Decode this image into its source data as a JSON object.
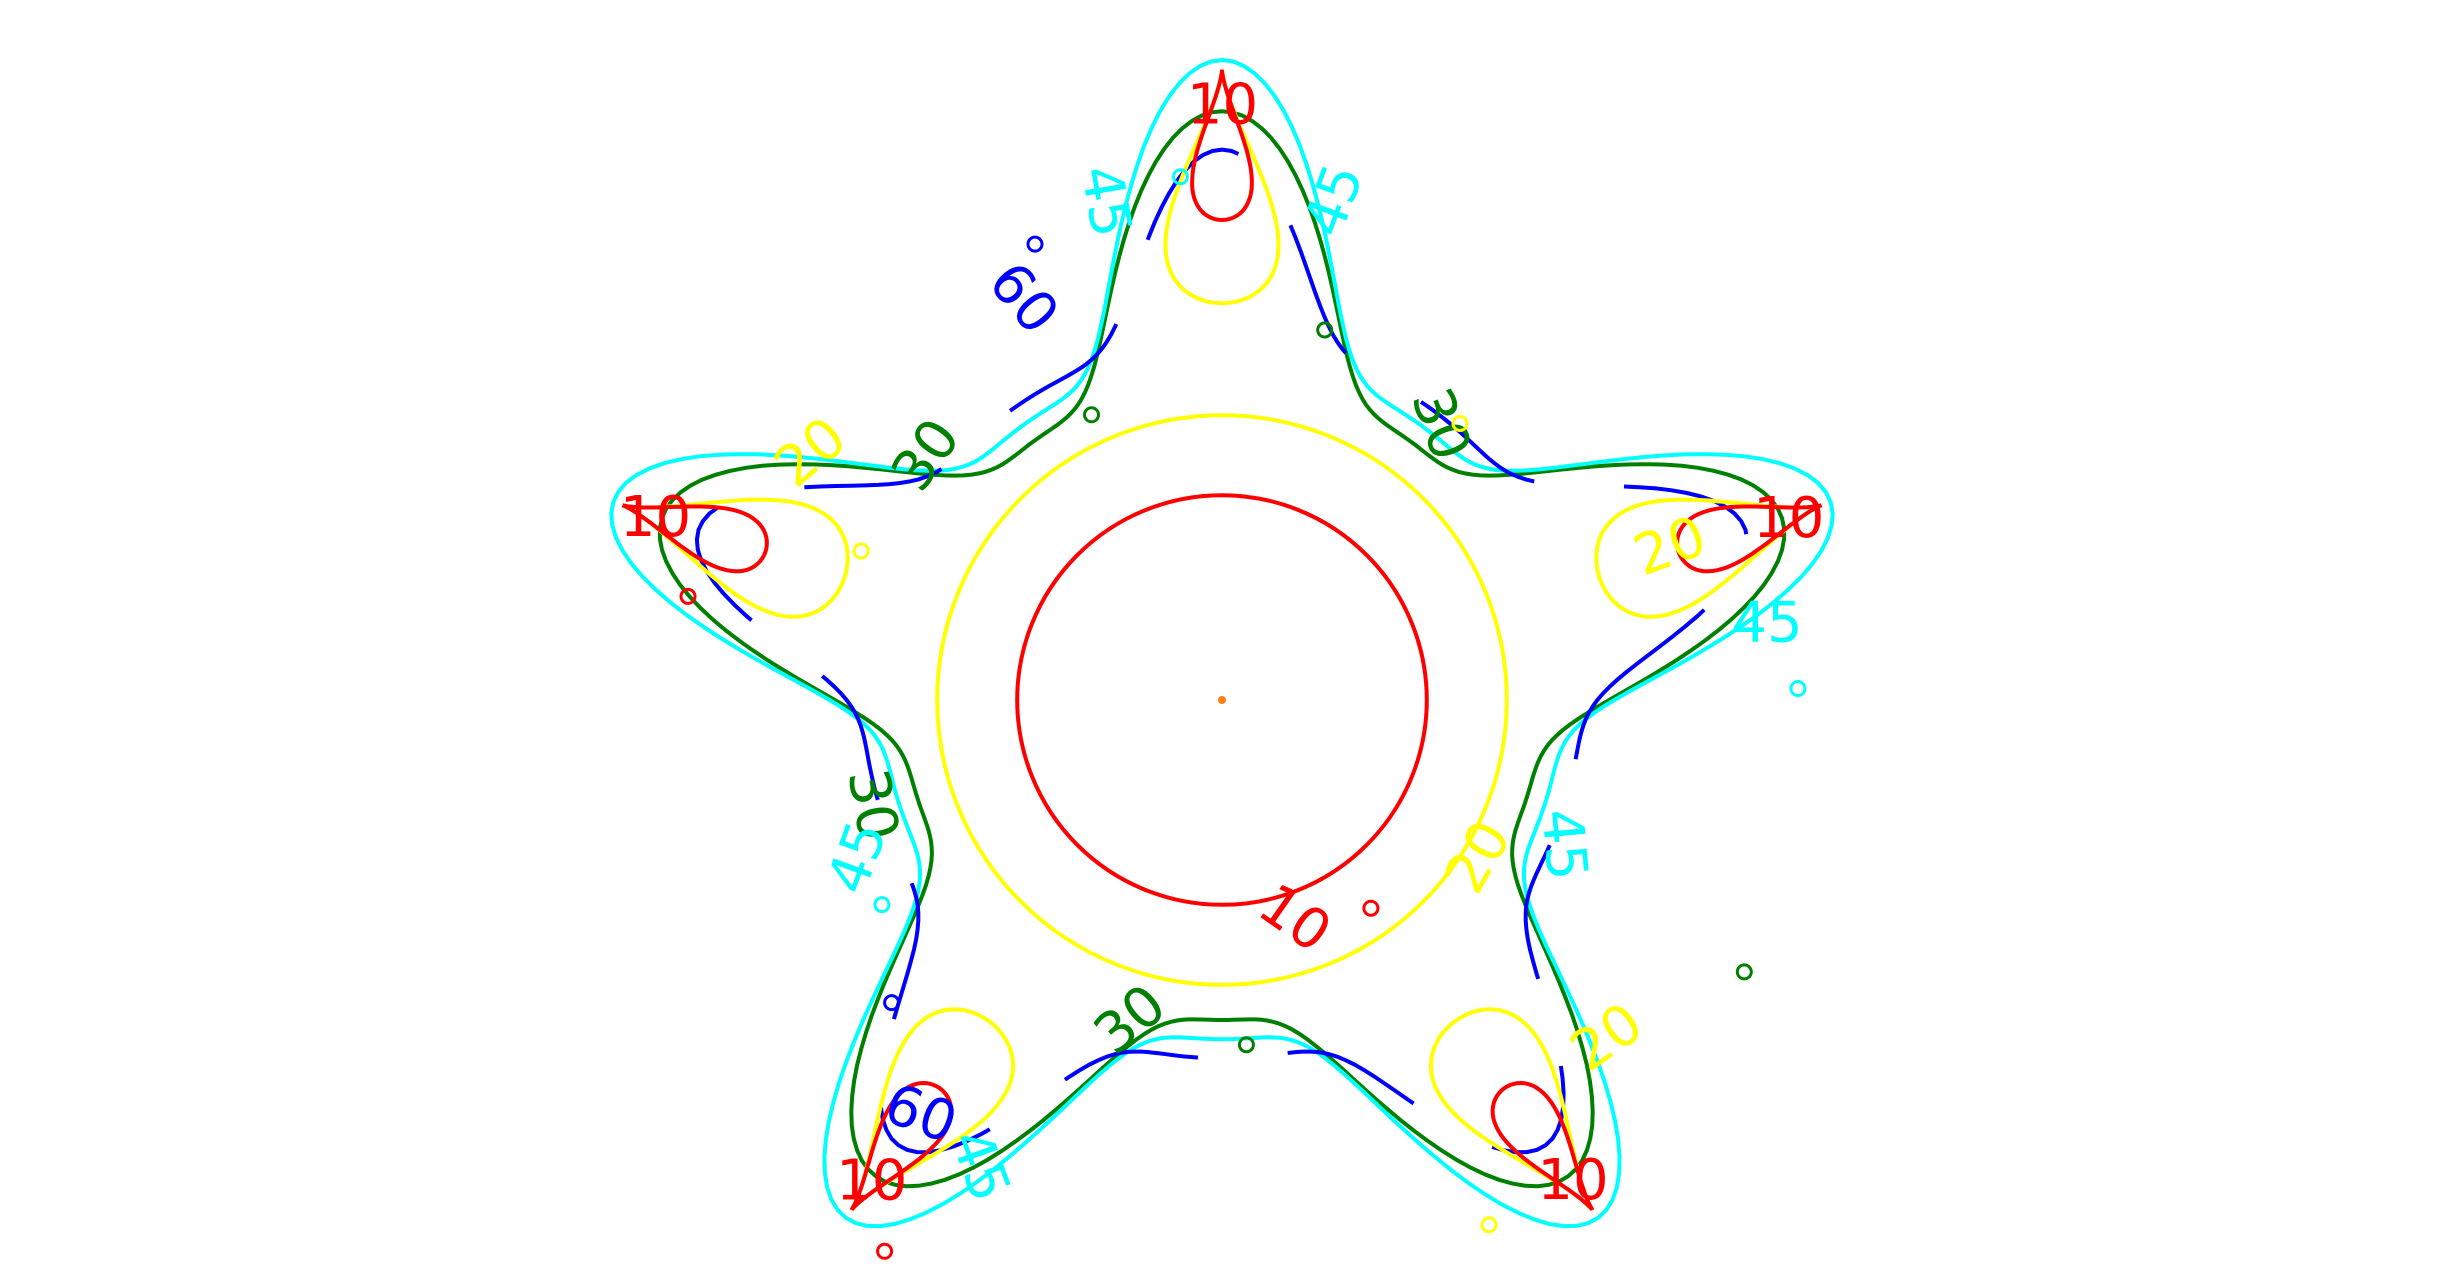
{
  "chart_data": {
    "type": "contour",
    "title": "",
    "xlabel": "",
    "ylabel": "",
    "grid": false,
    "legend": "none",
    "axes_visible": false,
    "domain": {
      "shape": "five-pointed star",
      "tip_radius": 1.0,
      "inner_radius": 0.4
    },
    "center_point": {
      "x": 0,
      "y": 0,
      "color": "#ff7f0e"
    },
    "levels": [
      {
        "value": 10,
        "label": "10",
        "color": "#ff0000"
      },
      {
        "value": 20,
        "label": "20",
        "color": "#ffff00"
      },
      {
        "value": 30,
        "label": "30",
        "color": "#008000"
      },
      {
        "value": 45,
        "label": "45",
        "color": "#00ffff"
      },
      {
        "value": 60,
        "label": "60",
        "color": "#0000ff"
      }
    ]
  }
}
